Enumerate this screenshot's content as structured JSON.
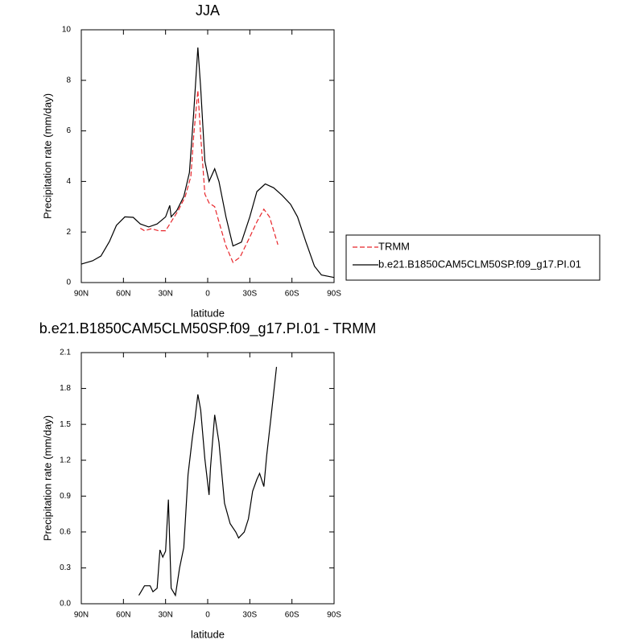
{
  "chart_data": [
    {
      "type": "line",
      "title": "JJA",
      "x_label": "latitude",
      "y_label": "Precipitation rate (mm/day)",
      "xlim": [
        90,
        -90
      ],
      "xticks": [
        {
          "value": 90,
          "label": "90N"
        },
        {
          "value": 60,
          "label": "60N"
        },
        {
          "value": 30,
          "label": "30N"
        },
        0,
        {
          "value": -30,
          "label": "30S"
        },
        {
          "value": -60,
          "label": "60S"
        },
        {
          "value": -90,
          "label": "90S"
        }
      ],
      "ylim": [
        0,
        10
      ],
      "yticks": [
        0,
        2,
        4,
        6,
        8,
        10
      ],
      "legend": "right",
      "series": [
        {
          "name": "TRMM",
          "color": "#e8262b",
          "line_style": "dashed",
          "x": [
            48,
            45,
            40,
            35,
            30,
            26,
            21,
            16,
            12,
            10,
            7,
            5,
            2,
            -1,
            -5,
            -8,
            -13,
            -18,
            -23,
            -30,
            -35,
            -40,
            -44,
            -50
          ],
          "values": [
            2.15,
            2.05,
            2.13,
            2.05,
            2.05,
            2.4,
            2.85,
            3.4,
            4.2,
            5.8,
            7.6,
            5.8,
            3.5,
            3.15,
            3.0,
            2.4,
            1.45,
            0.8,
            1.0,
            1.8,
            2.4,
            2.9,
            2.6,
            1.5
          ]
        },
        {
          "name": "b.e21.B1850CAM5CLM50SP.f09_g17.PI.01",
          "color": "#000000",
          "line_style": "solid",
          "x": [
            90,
            82,
            76,
            70,
            65,
            59,
            53,
            48,
            42,
            36,
            30,
            27,
            26,
            22,
            17,
            13,
            10,
            7,
            5,
            2,
            -1,
            -5,
            -8,
            -13,
            -18,
            -24,
            -30,
            -35,
            -41,
            -47,
            -53,
            -59,
            -64,
            -70,
            -76,
            -81,
            -90
          ],
          "values": [
            0.73,
            0.86,
            1.05,
            1.62,
            2.26,
            2.6,
            2.58,
            2.32,
            2.2,
            2.32,
            2.6,
            3.05,
            2.6,
            2.85,
            3.4,
            4.35,
            6.7,
            9.3,
            7.7,
            4.8,
            4.0,
            4.5,
            4.0,
            2.6,
            1.45,
            1.6,
            2.6,
            3.6,
            3.9,
            3.75,
            3.45,
            3.1,
            2.6,
            1.6,
            0.65,
            0.3,
            0.2
          ]
        }
      ]
    },
    {
      "type": "line",
      "title": "b.e21.B1850CAM5CLM50SP.f09_g17.PI.01 - TRMM",
      "x_label": "latitude",
      "y_label": "Precipitation rate (mm/day)",
      "xlim": [
        90,
        -90
      ],
      "xticks": [
        {
          "value": 90,
          "label": "90N"
        },
        {
          "value": 60,
          "label": "60N"
        },
        {
          "value": 30,
          "label": "30N"
        },
        0,
        {
          "value": -30,
          "label": "30S"
        },
        {
          "value": -60,
          "label": "60S"
        },
        {
          "value": -90,
          "label": "90S"
        }
      ],
      "ylim": [
        0,
        2.1
      ],
      "yticks": [
        {
          "value": 0,
          "label": "0.0"
        },
        0.3,
        0.6,
        0.9,
        1.2,
        1.5,
        1.8,
        2.1
      ],
      "series": [
        {
          "color": "#000000",
          "line_style": "solid",
          "x": [
            49,
            47,
            45,
            41,
            39,
            36,
            34,
            32,
            30,
            28,
            26,
            23,
            20,
            17,
            14,
            11,
            9,
            7,
            5,
            2,
            -1,
            -2,
            -5,
            -8,
            -12,
            -16,
            -20,
            -22,
            -26,
            -29,
            -32,
            -35,
            -37,
            -40,
            -42,
            -45,
            -49
          ],
          "values": [
            0.07,
            0.11,
            0.15,
            0.15,
            0.1,
            0.13,
            0.45,
            0.39,
            0.44,
            0.87,
            0.13,
            0.07,
            0.3,
            0.47,
            1.08,
            1.38,
            1.55,
            1.75,
            1.62,
            1.21,
            0.91,
            1.14,
            1.58,
            1.35,
            0.84,
            0.67,
            0.6,
            0.55,
            0.6,
            0.71,
            0.94,
            1.04,
            1.09,
            0.98,
            1.24,
            1.55,
            1.98
          ]
        }
      ]
    }
  ]
}
